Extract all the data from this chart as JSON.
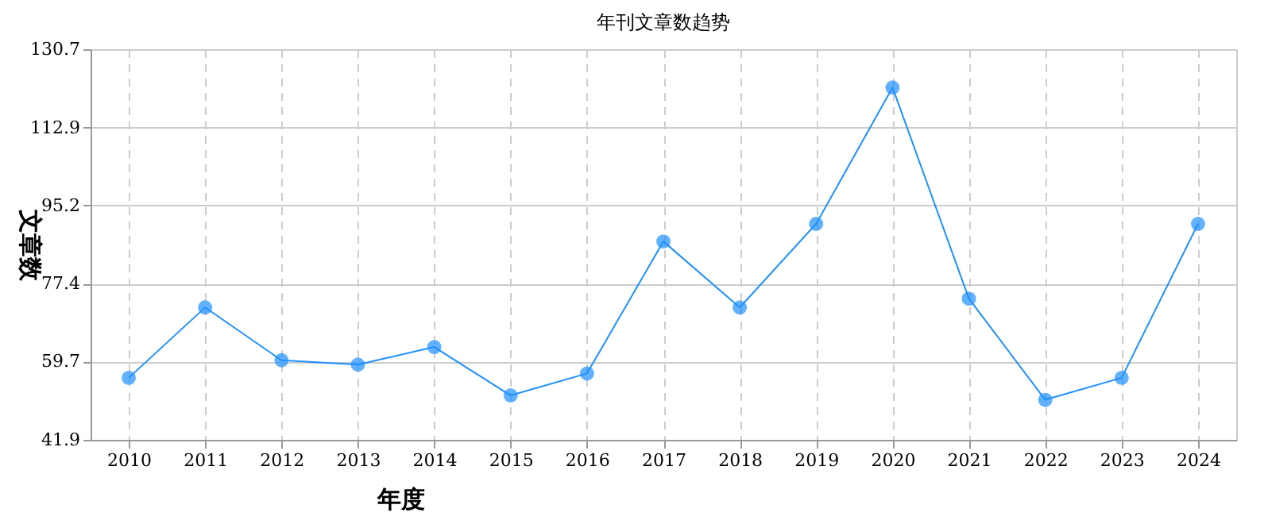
{
  "chart_data": {
    "type": "line",
    "title": "年刊文章数趋势",
    "xlabel": "年度",
    "ylabel": "文章数",
    "categories": [
      "2010",
      "2011",
      "2012",
      "2013",
      "2014",
      "2015",
      "2016",
      "2017",
      "2018",
      "2019",
      "2020",
      "2021",
      "2022",
      "2023",
      "2024"
    ],
    "series": [
      {
        "color": "#1e90ff",
        "values": [
          56,
          72,
          60,
          59,
          63,
          52,
          57,
          87,
          72,
          91,
          122,
          74,
          51,
          56,
          91
        ]
      }
    ],
    "ylim": [
      41.9,
      130.7
    ],
    "yticks": [
      41.9,
      59.7,
      77.4,
      95.2,
      112.9,
      130.7
    ],
    "grid": true,
    "marker": "circle",
    "line_style": "solid"
  }
}
